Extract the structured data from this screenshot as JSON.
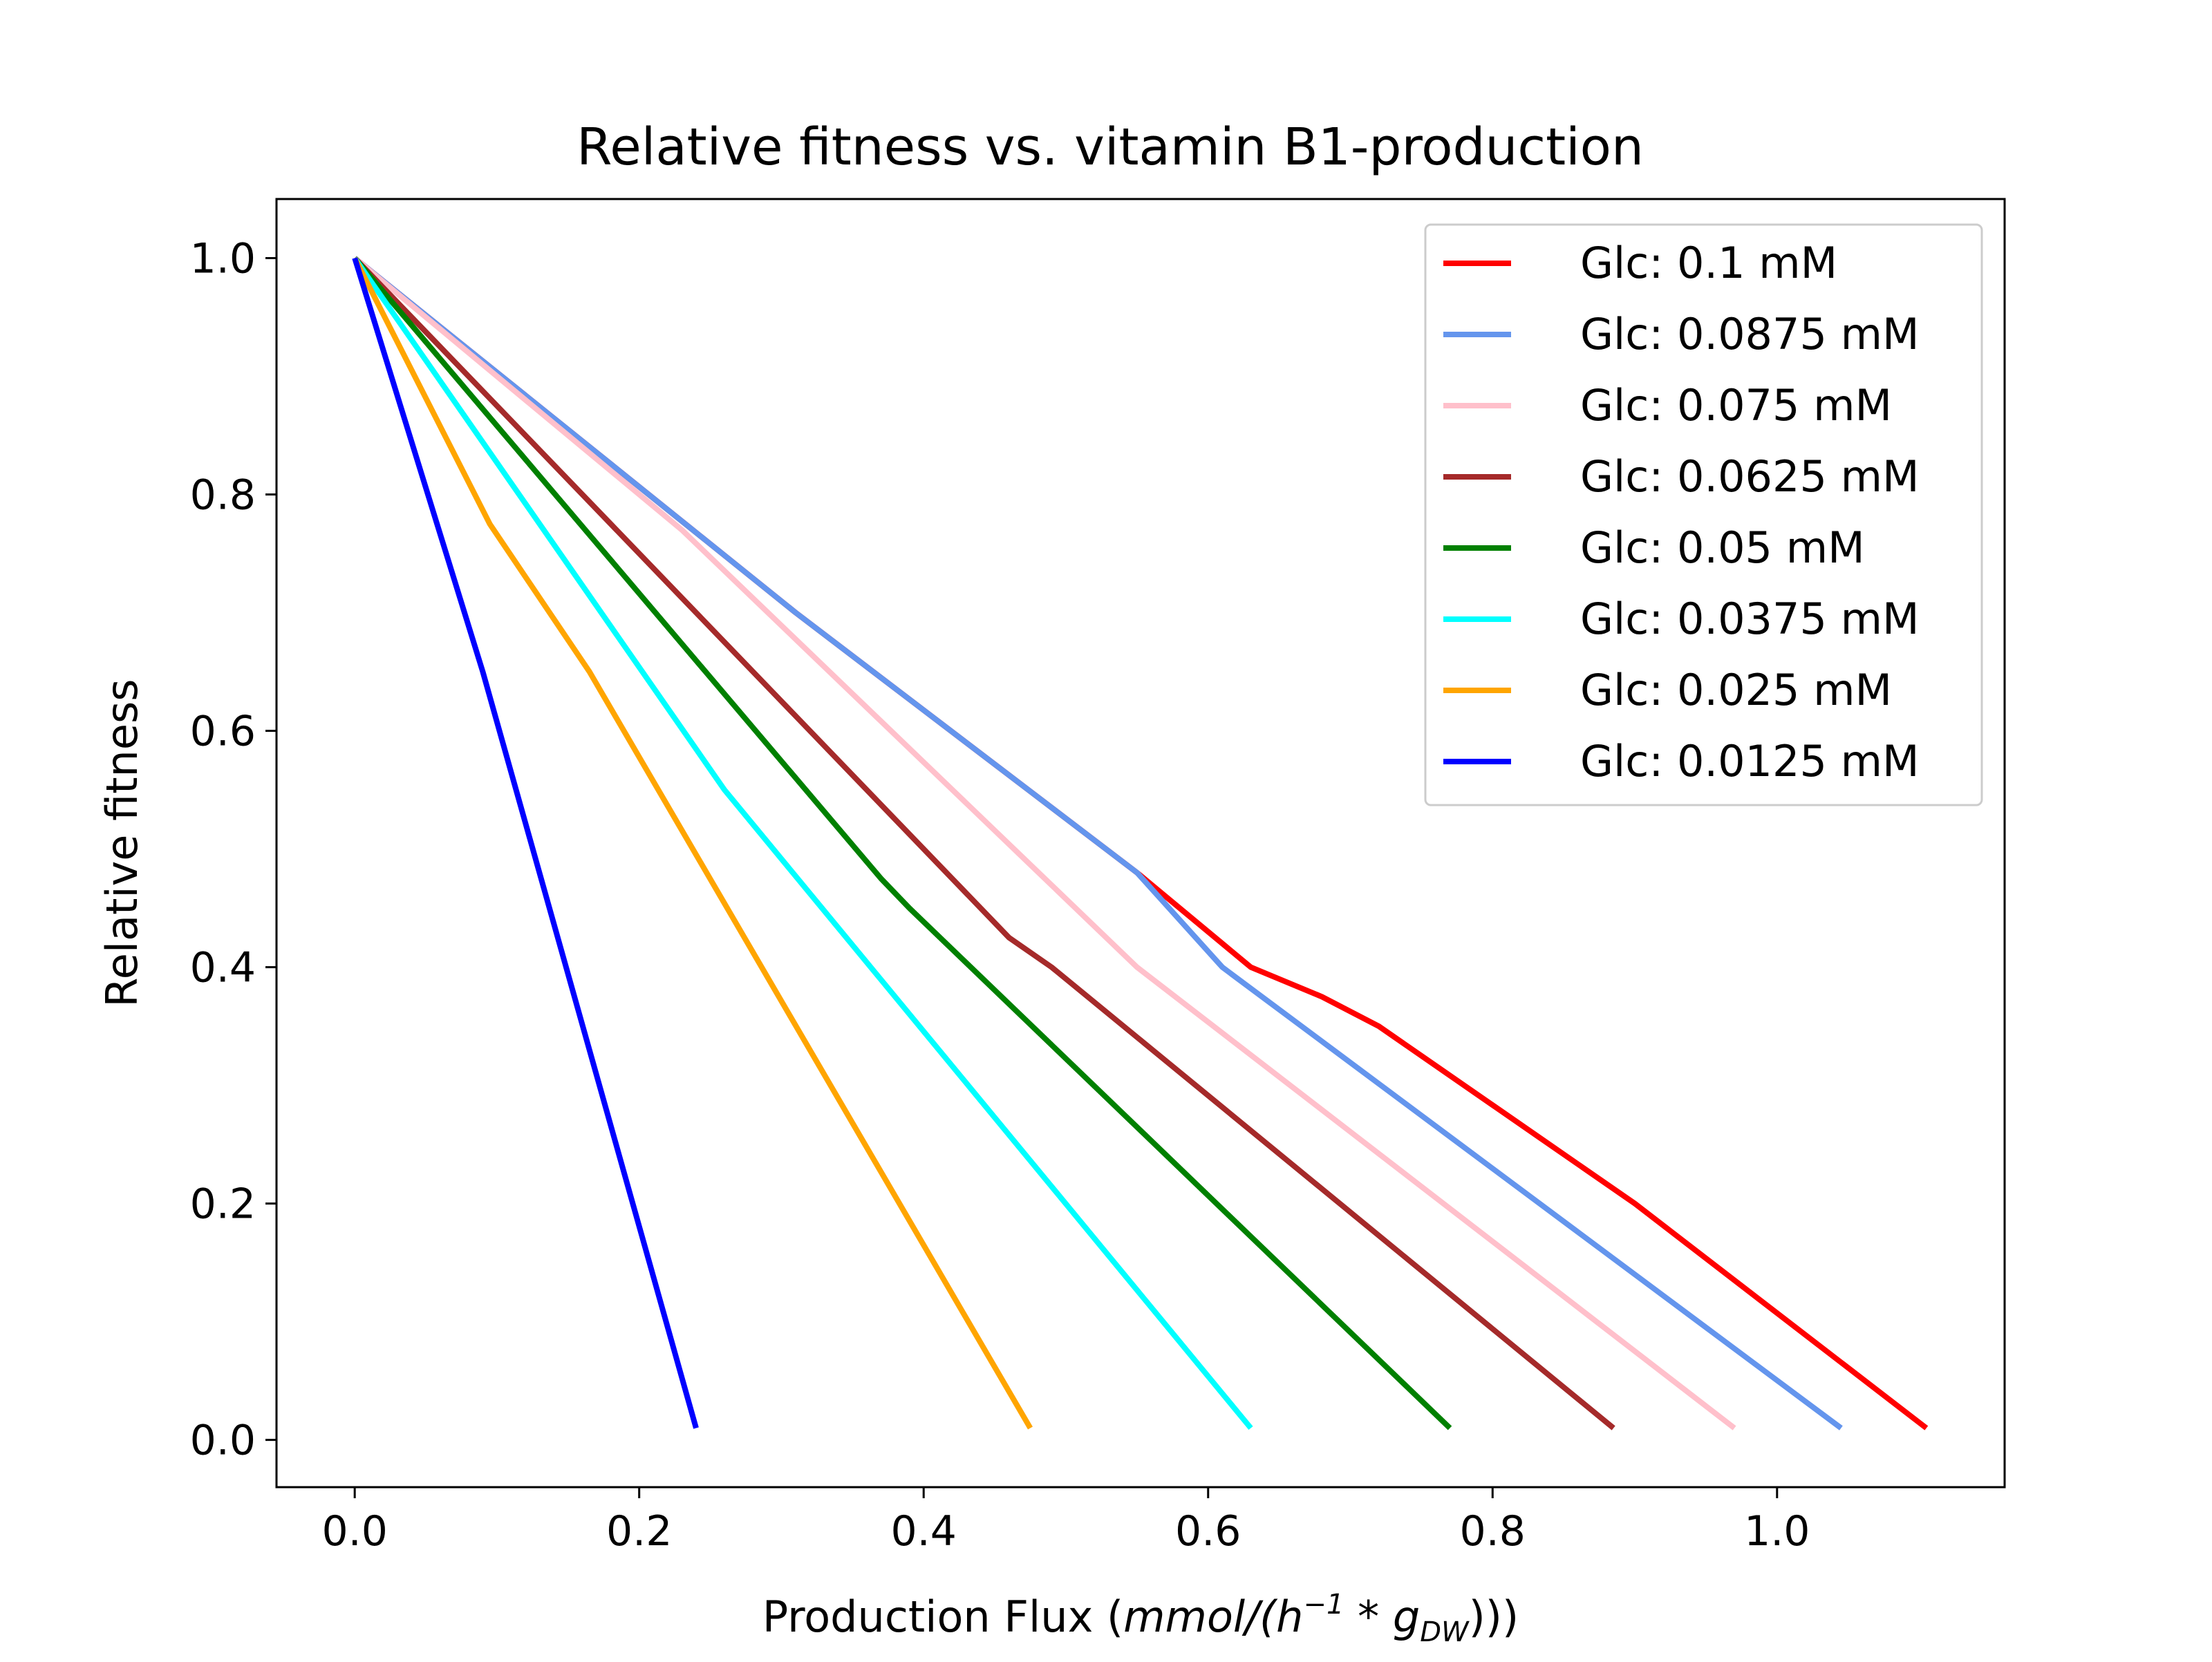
{
  "chart_data": {
    "type": "line",
    "title": "Relative fitness vs. vitamin B1-production",
    "xlabel": {
      "prefix": "Production Flux (",
      "unit_main": "mmol/(h",
      "unit_sup": "−1",
      "unit_mid": " * g",
      "unit_sub": "DW",
      "suffix": ")))"
    },
    "ylabel": "Relative fitness",
    "xlim": [
      -0.055,
      1.16
    ],
    "ylim": [
      -0.04,
      1.05
    ],
    "xticks": [
      0.0,
      0.2,
      0.4,
      0.6,
      0.8,
      1.0
    ],
    "xtick_labels": [
      "0.0",
      "0.2",
      "0.4",
      "0.6",
      "0.8",
      "1.0"
    ],
    "yticks": [
      0.0,
      0.2,
      0.4,
      0.6,
      0.8,
      1.0
    ],
    "ytick_labels": [
      "0.0",
      "0.2",
      "0.4",
      "0.6",
      "0.8",
      "1.0"
    ],
    "grid": false,
    "legend_position": "top-right",
    "series": [
      {
        "name": "Glc: 0.1 mM",
        "color": "#ff0000",
        "x": [
          0.0,
          0.31,
          0.55,
          0.63,
          0.68,
          0.72,
          0.9,
          1.105
        ],
        "y": [
          1.0,
          0.7,
          0.48,
          0.4,
          0.375,
          0.35,
          0.2,
          0.01
        ]
      },
      {
        "name": "Glc: 0.0875 mM",
        "color": "#6495ed",
        "x": [
          0.0,
          0.31,
          0.55,
          0.61,
          1.045
        ],
        "y": [
          1.0,
          0.7,
          0.48,
          0.4,
          0.01
        ]
      },
      {
        "name": "Glc: 0.075 mM",
        "color": "#ffc0cb",
        "x": [
          0.0,
          0.23,
          0.55,
          0.97
        ],
        "y": [
          1.0,
          0.77,
          0.4,
          0.01
        ]
      },
      {
        "name": "Glc: 0.0625 mM",
        "color": "#a52a2a",
        "x": [
          0.0,
          0.46,
          0.49,
          0.885
        ],
        "y": [
          1.0,
          0.425,
          0.4,
          0.01
        ]
      },
      {
        "name": "Glc: 0.05 mM",
        "color": "#008000",
        "x": [
          0.0,
          0.37,
          0.39,
          0.77
        ],
        "y": [
          1.0,
          0.475,
          0.45,
          0.01
        ]
      },
      {
        "name": "Glc: 0.0375 mM",
        "color": "#00ffff",
        "x": [
          0.0,
          0.26,
          0.63
        ],
        "y": [
          1.0,
          0.55,
          0.01
        ]
      },
      {
        "name": "Glc: 0.025 mM",
        "color": "#ffa500",
        "x": [
          0.0,
          0.095,
          0.165,
          0.475
        ],
        "y": [
          1.0,
          0.775,
          0.65,
          0.01
        ]
      },
      {
        "name": "Glc: 0.0125 mM",
        "color": "#0000ff",
        "x": [
          0.0,
          0.09,
          0.24
        ],
        "y": [
          1.0,
          0.65,
          0.01
        ]
      }
    ]
  }
}
